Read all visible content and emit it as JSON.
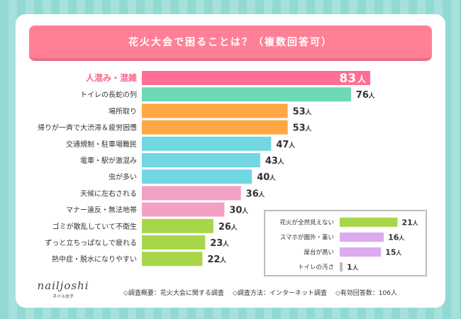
{
  "title": "花火大会で困ることは？（複数回答可）",
  "unit": "人",
  "colors": {
    "pink_highlight": "#ff6f93",
    "teal": "#6dd9b6",
    "orange": "#ffa742",
    "cyan": "#72d6e3",
    "light_pink": "#f3a0c7",
    "green": "#a8d64a",
    "lavender": "#dcaaee",
    "gray": "#bdbdbd"
  },
  "chart_data": [
    {
      "type": "bar",
      "orientation": "horizontal",
      "title": "花火大会で困ることは？（複数回答可）",
      "xlim": [
        0,
        90
      ],
      "categories": [
        "人混み・混雑",
        "トイレの長蛇の列",
        "場所取り",
        "帰りが一斉で大渋滞＆疲労困憊",
        "交通規制・駐車場難民",
        "電車・駅が激混み",
        "虫が多い",
        "天候に左右される",
        "マナー違反・無法地帯",
        "ゴミが散乱していて不衛生",
        "ずっと立ちっぱなしで疲れる",
        "熱中症・脱水になりやすい"
      ],
      "values": [
        83,
        76,
        53,
        53,
        47,
        43,
        40,
        36,
        30,
        26,
        23,
        22
      ],
      "bar_colors": [
        "pink_highlight",
        "teal",
        "orange",
        "orange",
        "cyan",
        "cyan",
        "cyan",
        "light_pink",
        "light_pink",
        "green",
        "green",
        "green"
      ],
      "highlight_index": 0
    },
    {
      "type": "bar",
      "orientation": "horizontal",
      "xlim": [
        0,
        90
      ],
      "categories": [
        "花火が全然見えない",
        "スマホが圏外・重い",
        "屋台が高い",
        "トイレの汚さ"
      ],
      "values": [
        21,
        16,
        15,
        1
      ],
      "bar_colors": [
        "green",
        "lavender",
        "lavender",
        "gray"
      ]
    }
  ],
  "logo": {
    "name": "nailjoshi",
    "sub": "ネイル女子"
  },
  "footer": {
    "survey": "◇調査概要：花火大会に関する調査",
    "method": "◇調査方法：インターネット調査",
    "responses": "◇有効回答数：106人"
  }
}
